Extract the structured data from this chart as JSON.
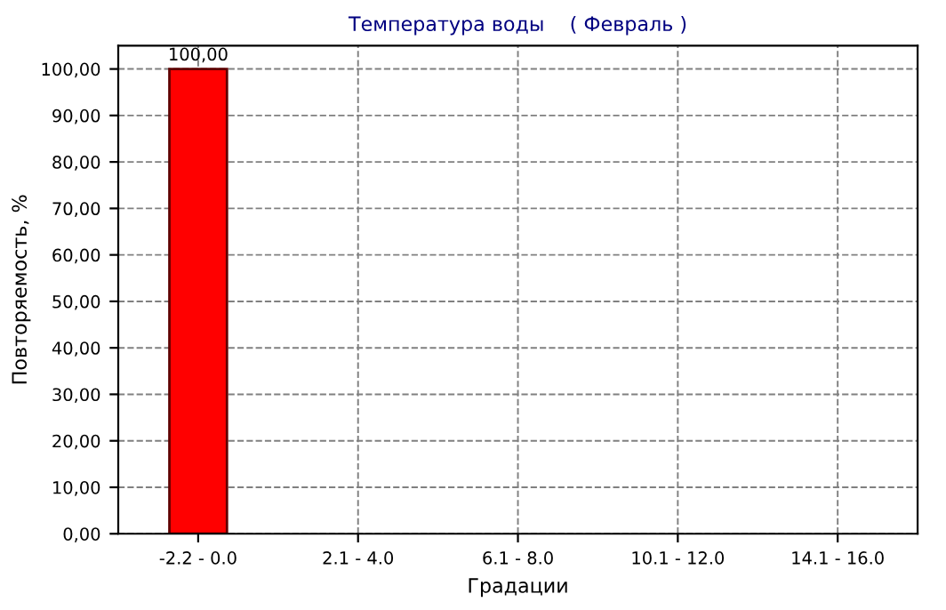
{
  "chart_data": {
    "type": "bar",
    "title": "Температура воды    ( Февраль )",
    "xlabel": "Градации",
    "ylabel": "Повторяемость, %",
    "categories": [
      "-2.2 - 0.0",
      "2.1 - 4.0",
      "6.1 - 8.0",
      "10.1 - 12.0",
      "14.1 - 16.0"
    ],
    "values": [
      100,
      0,
      0,
      0,
      0
    ],
    "color": "#ff0000",
    "value_labels": [
      "100,00",
      null,
      null,
      null,
      null
    ],
    "ylim": [
      0,
      105
    ],
    "yticks": [
      {
        "value": 0,
        "label": "0,00"
      },
      {
        "value": 10,
        "label": "10,00"
      },
      {
        "value": 20,
        "label": "20,00"
      },
      {
        "value": 30,
        "label": "30,00"
      },
      {
        "value": 40,
        "label": "40,00"
      },
      {
        "value": 50,
        "label": "50,00"
      },
      {
        "value": 60,
        "label": "60,00"
      },
      {
        "value": 70,
        "label": "70,00"
      },
      {
        "value": 80,
        "label": "80,00"
      },
      {
        "value": 90,
        "label": "90,00"
      },
      {
        "value": 100,
        "label": "100,00"
      }
    ],
    "grid": true,
    "line_style": "dashed"
  }
}
